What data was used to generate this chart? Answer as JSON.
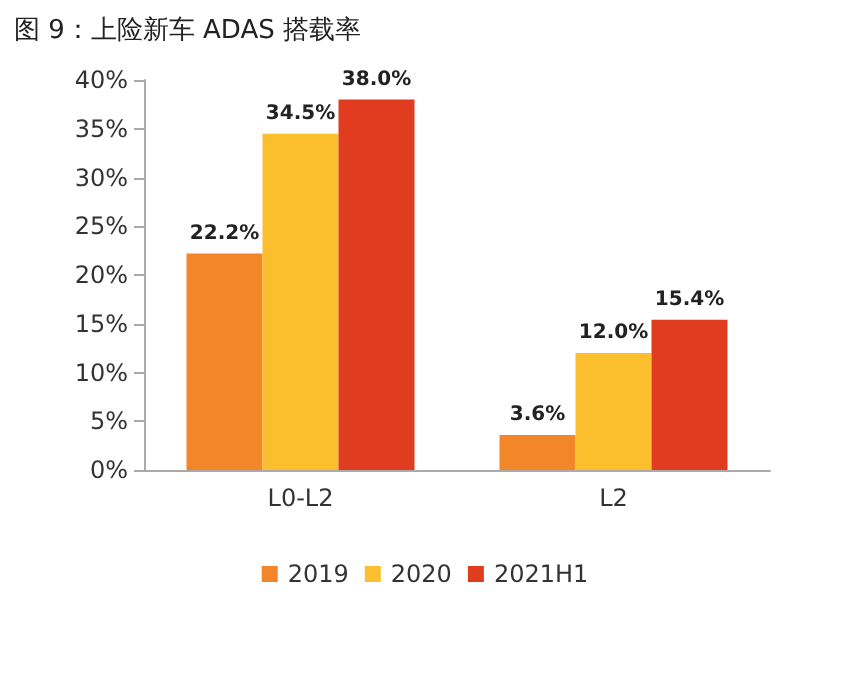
{
  "chart_data": {
    "type": "bar",
    "title": "图 9：上险新车 ADAS 搭载率",
    "categories": [
      "L0-L2",
      "L2"
    ],
    "series": [
      {
        "name": "2019",
        "color": "#f4862a",
        "values": [
          22.2,
          3.6
        ],
        "value_labels": [
          "22.2%",
          "3.6%"
        ]
      },
      {
        "name": "2020",
        "color": "#fbbf2e",
        "values": [
          34.5,
          12.0
        ],
        "value_labels": [
          "34.5%",
          "12.0%"
        ]
      },
      {
        "name": "2021H1",
        "color": "#e03c1f",
        "values": [
          38.0,
          15.4
        ],
        "value_labels": [
          "38.0%",
          "15.4%"
        ]
      }
    ],
    "ylim": [
      0,
      40
    ],
    "yticks": [
      {
        "value": 0,
        "label": "0%"
      },
      {
        "value": 5,
        "label": "5%"
      },
      {
        "value": 10,
        "label": "10%"
      },
      {
        "value": 15,
        "label": "15%"
      },
      {
        "value": 20,
        "label": "20%"
      },
      {
        "value": 25,
        "label": "25%"
      },
      {
        "value": 30,
        "label": "30%"
      },
      {
        "value": 35,
        "label": "35%"
      },
      {
        "value": 40,
        "label": "40%"
      }
    ],
    "grid": false,
    "legend": "bottom"
  }
}
